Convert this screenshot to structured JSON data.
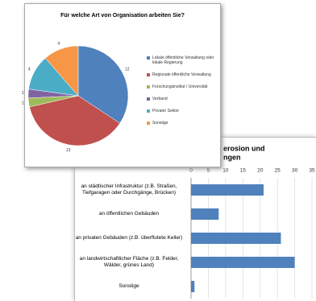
{
  "chart_data": [
    {
      "type": "hbar",
      "title_lines": [
        "erosion und",
        "ngen"
      ],
      "categories": [
        "an städtischer Infrastruktur (z.B. Straßen, Tiefgaragen oder Durchgänge, Brücken)",
        "an öffentlichen Gebäuden",
        "an privaten Gebäuden (z.B. überflutete Keller)",
        "an landwirtschaftlicher Fläche (z.B. Felder, Wälder, grünes Land)",
        "Sonstige"
      ],
      "values": [
        21,
        8,
        26,
        30,
        1
      ],
      "color": "#4f81bd",
      "xlim": [
        0,
        35
      ],
      "xticks": [
        0,
        5,
        10,
        15,
        20,
        25,
        30,
        35
      ],
      "grid": true
    },
    {
      "type": "pie",
      "title": "Für welche Art von Organisation arbeiten Sie?",
      "categories": [
        "Lokale öffentliche Verwaltung oder lokale Regierung",
        "Regionale öffentliche Verwaltung",
        "Forschungsinstitut / Universität",
        "Verband",
        "Privater Sektor",
        "Sonstige"
      ],
      "values": [
        12,
        13,
        1,
        1,
        4,
        4
      ],
      "colors": [
        "#4f81bd",
        "#c0504d",
        "#9bbb59",
        "#8064a2",
        "#4bacc6",
        "#f79646"
      ],
      "legend": "right"
    }
  ]
}
